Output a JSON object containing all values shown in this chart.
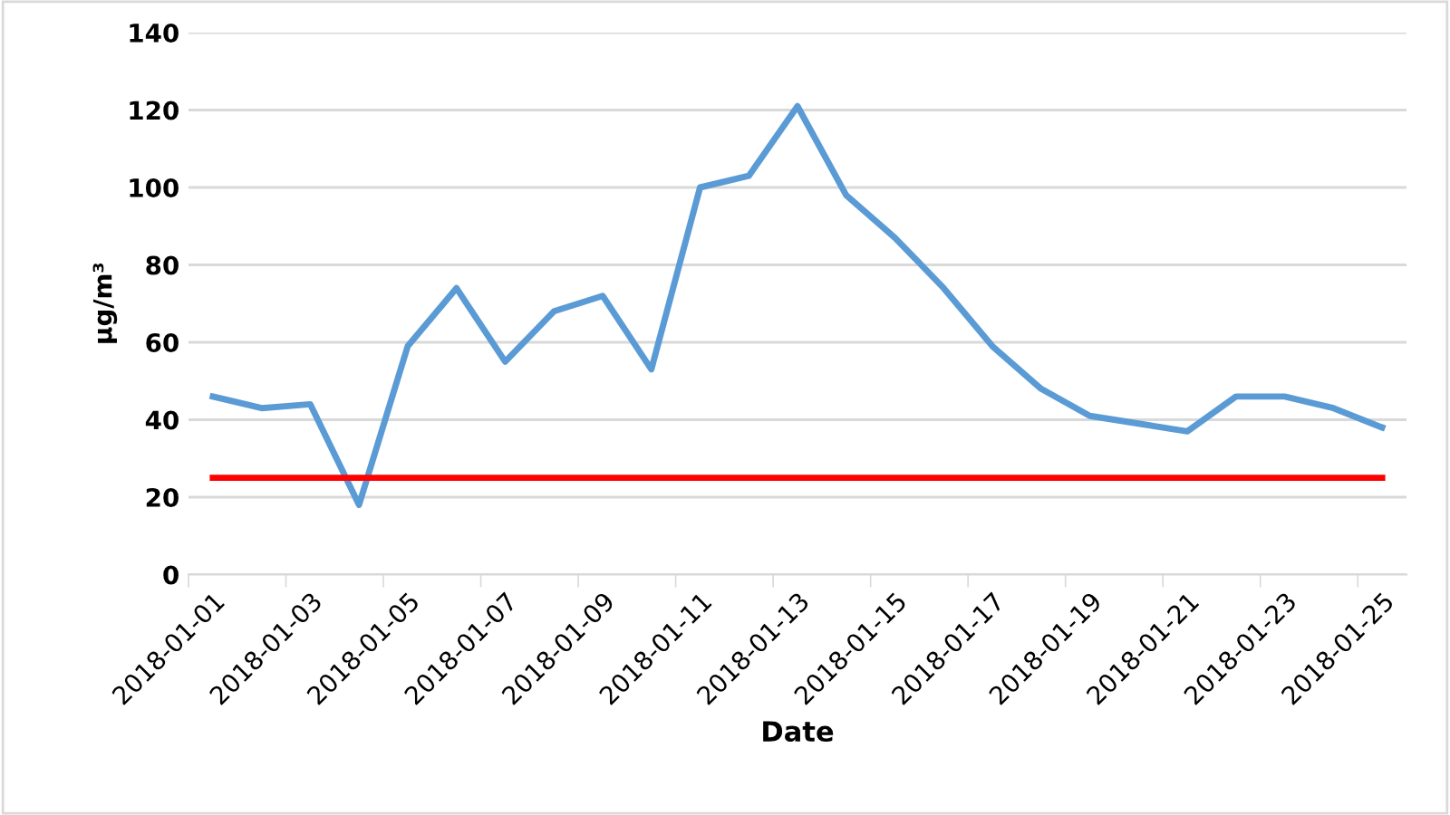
{
  "chart_data": {
    "type": "line",
    "xlabel": "Date",
    "ylabel": "μg/m³",
    "categories": [
      "2018-01-01",
      null,
      "2018-01-03",
      null,
      "2018-01-05",
      null,
      "2018-01-07",
      null,
      "2018-01-09",
      null,
      "2018-01-11",
      null,
      "2018-01-13",
      null,
      "2018-01-15",
      null,
      "2018-01-17",
      null,
      "2018-01-19",
      null,
      "2018-01-21",
      null,
      "2018-01-23",
      null,
      "2018-01-25"
    ],
    "series": [
      {
        "color": "#5b9bd5",
        "values": [
          46,
          43,
          44,
          18,
          59,
          74,
          55,
          68,
          72,
          53,
          100,
          103,
          121,
          98,
          87,
          74,
          59,
          48,
          41,
          39,
          37,
          46,
          46,
          43,
          38
        ]
      }
    ],
    "ref_lines": [
      {
        "axis": "y",
        "value": 25,
        "color": "#ff0000"
      }
    ],
    "ylim": [
      0,
      140
    ],
    "yticks": [
      0,
      20,
      40,
      60,
      80,
      100,
      120,
      140
    ],
    "grid": "y",
    "legend": false
  }
}
